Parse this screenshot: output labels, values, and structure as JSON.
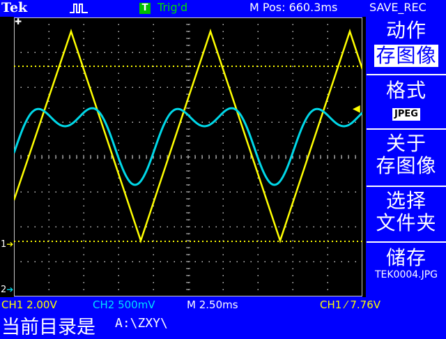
{
  "header": {
    "brand": "Tek",
    "trigger_state_badge": "T",
    "trigger_state": "Trig'd",
    "m_pos": "M Pos: 660.3ms",
    "menu_title": "SAVE_REC"
  },
  "markers": {
    "ch1": "1",
    "ch2": "2"
  },
  "menu": {
    "action_label": "动作",
    "action_value": "存图像",
    "format_label": "格式",
    "format_value": "JPEG",
    "about_line1": "关于",
    "about_line2": "存图像",
    "select_line1": "选择",
    "select_line2": "文件夹",
    "save_label": "储存",
    "save_file": "TEK0004.JPG"
  },
  "status": {
    "ch1": "CH1  2.00V",
    "ch2": "CH2  500mV",
    "timebase": "M 2.50ms",
    "trigger": "CH1  ⁄  7.76V"
  },
  "footer": {
    "current_dir_label": "当前目录是",
    "current_dir_path": "A:\\ZXY\\"
  },
  "colors": {
    "frame": "#0000ff",
    "ch1_trace": "#ffff00",
    "ch2_trace": "#00d8e8",
    "grid": "#c8c8c8"
  }
}
